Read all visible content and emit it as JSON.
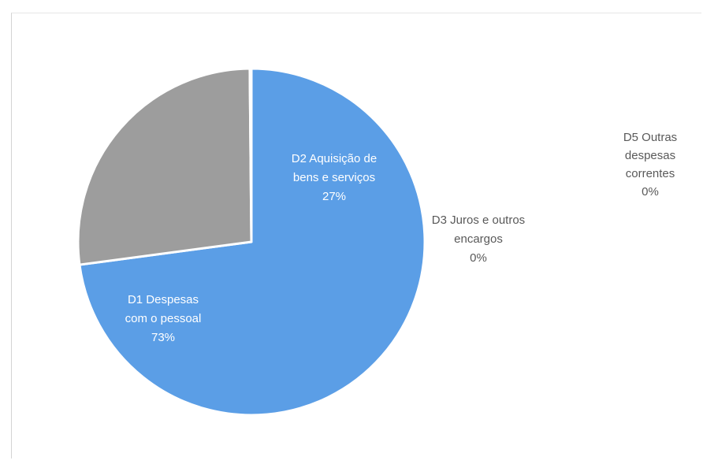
{
  "chart_data": {
    "type": "pie",
    "slices": [
      {
        "name": "D1 Despesas com o pessoal",
        "value": 73,
        "label": [
          "D1 Despesas",
          "com o pessoal",
          "73%"
        ],
        "color": "#5b9ee6"
      },
      {
        "name": "D2 Aquisição de bens e serviços",
        "value": 27,
        "label": [
          "D2 Aquisição de",
          "bens e serviços",
          "27%"
        ],
        "color": "#9d9d9d"
      },
      {
        "name": "D3 Juros e outros encargos",
        "value": 0.15,
        "label": [
          "D3 Juros e outros",
          "encargos",
          "0%"
        ],
        "color": "#4472c4"
      },
      {
        "name": "D5 Outras despesas correntes",
        "value": 0,
        "label": [
          "D5 Outras",
          "despesas",
          "correntes",
          "0%"
        ],
        "color": "#ed7d31"
      }
    ],
    "start_angle_deg": 0,
    "direction": "clockwise",
    "title": ""
  }
}
